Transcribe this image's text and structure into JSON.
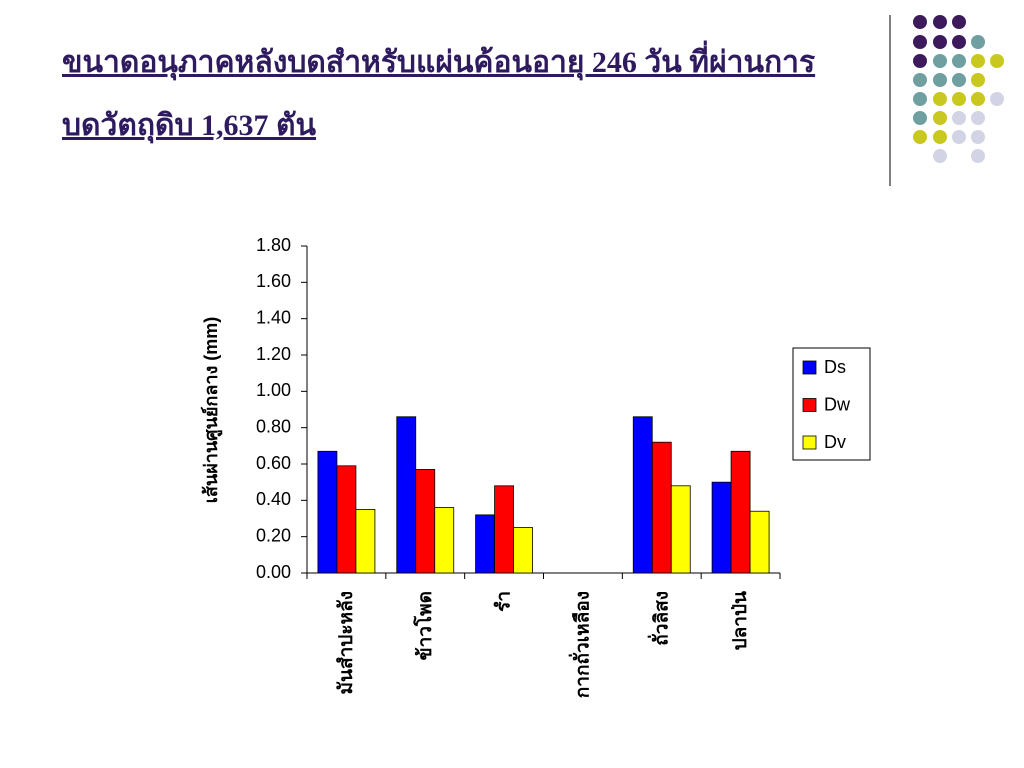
{
  "chart_data": {
    "type": "bar",
    "title": [
      "ขนาดอนุภาคหลังบดสำหรับแผ่นค้อนอายุ 246 วัน ที่ผ่านการ",
      "บดวัตถุดิบ 1,637 ตัน"
    ],
    "y_label": "เส้นผ่านศูนย์กลาง (mm)",
    "categories": [
      "มันสำปะหลัง",
      "ข้าวโพด",
      "รำ",
      "กากถั่วเหลือง",
      "ถั่วลิสง",
      "ปลาป่น"
    ],
    "series": [
      {
        "name": "Ds",
        "color": "#0000ff",
        "values": [
          0.67,
          0.86,
          0.32,
          null,
          0.86,
          0.5
        ]
      },
      {
        "name": "Dw",
        "color": "#ff0000",
        "values": [
          0.59,
          0.57,
          0.48,
          null,
          0.72,
          0.67
        ]
      },
      {
        "name": "Dv",
        "color": "#ffff00",
        "values": [
          0.35,
          0.36,
          0.25,
          null,
          0.48,
          0.34
        ]
      }
    ],
    "ylim": [
      0,
      1.8
    ],
    "yticks": [
      {
        "value": 0,
        "label": "0.00"
      },
      {
        "value": 0.2,
        "label": "0.20"
      },
      {
        "value": 0.4,
        "label": "0.40"
      },
      {
        "value": 0.6,
        "label": "0.60"
      },
      {
        "value": 0.8,
        "label": "0.80"
      },
      {
        "value": 1,
        "label": "1.00"
      },
      {
        "value": 1.2,
        "label": "1.20"
      },
      {
        "value": 1.4,
        "label": "1.40"
      },
      {
        "value": 1.6,
        "label": "1.60"
      },
      {
        "value": 1.8,
        "label": "1.80"
      }
    ],
    "legend": "right",
    "grid": false
  }
}
